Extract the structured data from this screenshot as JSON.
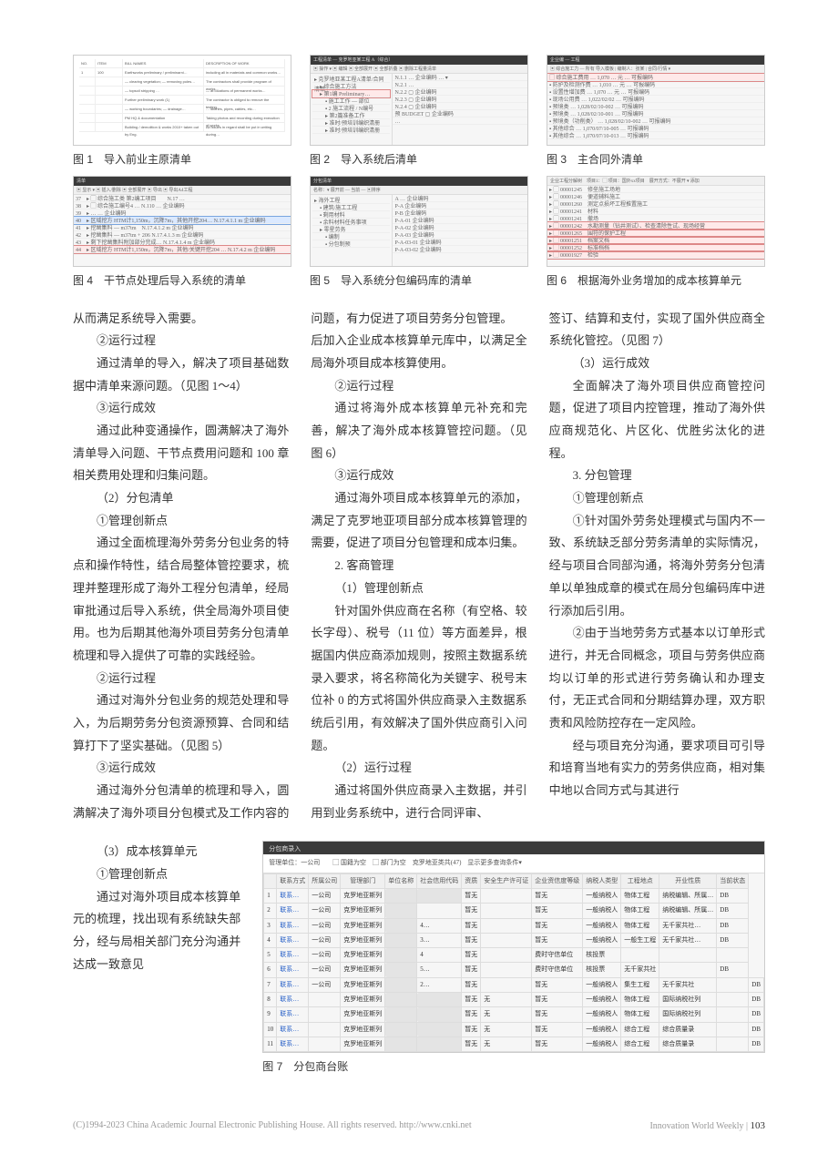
{
  "figs": {
    "f1": {
      "caption": "图 1　导入前业主原清单"
    },
    "f2": {
      "caption": "图 2　导入系统后清单"
    },
    "f3": {
      "caption": "图 3　主合同外清单"
    },
    "f4": {
      "caption": "图 4　干节点处理后导入系统的清单"
    },
    "f5": {
      "caption": "图 5　导入系统分包编码库的清单"
    },
    "f6": {
      "caption": "图 6　根据海外业务增加的成本核算单元"
    },
    "f7": {
      "caption": "图 7　分包商台账",
      "title": "分包商录入",
      "filter": "管理单位：一公司　　▢ 国籍为空　▢ 部门为空　克罗地亚类共(47)　显示更多查询条件▾"
    }
  },
  "f7_cols": [
    "",
    "联系方式",
    "所属公司",
    "管理部门",
    "单位名称",
    "社会信用代码",
    "资质",
    "安全生产许可证",
    "企业资信度等级",
    "纳税人类型",
    "工程地点",
    "开业性质",
    "当前状态"
  ],
  "f7_rows": [
    [
      "1",
      "联系…",
      "一公司",
      "克罗地亚斯列",
      "████",
      "████",
      "暂无",
      "",
      "暂无",
      "一般纳税人",
      "物体工程",
      "纳税编辑、所属…",
      "DB"
    ],
    [
      "2",
      "联系…",
      "一公司",
      "克罗地亚斯列",
      "████",
      "",
      "暂无",
      "",
      "暂无",
      "一般纳税人",
      "物体工程",
      "纳税编辑、所属…",
      "DB"
    ],
    [
      "3",
      "联系…",
      "一公司",
      "克罗地亚斯列",
      "████",
      "4…",
      "暂无",
      "",
      "暂无",
      "一般纳税人",
      "物体工程",
      "无千家共社…",
      "DB"
    ],
    [
      "4",
      "联系…",
      "一公司",
      "克罗地亚斯列",
      "████",
      "3…",
      "暂无",
      "",
      "暂无",
      "一般纳税人",
      "一般生工程",
      "无千家共社…",
      "DB"
    ],
    [
      "5",
      "联系…",
      "一公司",
      "克罗地亚斯列",
      "████",
      "4",
      "暂无",
      "",
      "费时守信单位",
      "核投票",
      "",
      "",
      ""
    ],
    [
      "6",
      "联系…",
      "一公司",
      "克罗地亚斯列",
      "████",
      "5…",
      "暂无",
      "",
      "费时守信单位",
      "核投票",
      "无千家共社",
      "",
      "DB"
    ],
    [
      "7",
      "联系…",
      "一公司",
      "克罗地亚斯列",
      "████",
      "2…",
      "暂无",
      "",
      "暂无",
      "一般纳税人",
      "集生工程",
      "无千家共社",
      "",
      "DB"
    ],
    [
      "8",
      "联系…",
      "",
      "克罗地亚斯列",
      "████",
      "████",
      "暂无",
      "无",
      "暂无",
      "一般纳税人",
      "物体工程",
      "国际纳税社列",
      "",
      "DB"
    ],
    [
      "9",
      "联系…",
      "",
      "克罗地亚斯列",
      "████",
      "████",
      "暂无",
      "无",
      "暂无",
      "一般纳税人",
      "物体工程",
      "国际纳税社列",
      "",
      "DB"
    ],
    [
      "10",
      "联系…",
      "",
      "克罗地亚斯列",
      "████",
      "████",
      "暂无",
      "无",
      "暂无",
      "一般纳税人",
      "综合工程",
      "综合质量录",
      "",
      "DB"
    ],
    [
      "11",
      "联系…",
      "",
      "克罗地亚斯列",
      "████",
      "████",
      "暂无",
      "无",
      "暂无",
      "一般纳税人",
      "综合工程",
      "综合质量录",
      "",
      "DB"
    ]
  ],
  "text": {
    "p01": "从而满足系统导入需要。",
    "p02": "②运行过程",
    "p03": "通过清单的导入，解决了项目基础数据中清单来源问题。（见图 1～4）",
    "p04": "③运行成效",
    "p05": "通过此种变通操作，圆满解决了海外清单导入问题、干节点费用问题和 100 章相关费用处理和归集问题。",
    "p06": "（2）分包清单",
    "p07": "①管理创新点",
    "p08": "通过全面梳理海外劳务分包业务的特点和操作特性，结合局整体管控要求，梳理并整理形成了海外工程分包清单，经局审批通过后导入系统，供全局海外项目使用。也为后期其他海外项目劳务分包清单梳理和导入提供了可靠的实践经验。",
    "p09": "②运行过程",
    "p10": "通过对海外分包业务的规范处理和导入，为后期劳务分包资源预算、合同和结算打下了坚实基础。（见图 5）",
    "p11": "③运行成效",
    "p12": "通过海外分包清单的梳理和导入，圆满解决了海外项目分包模式及工作内容的问题，有力促进了项目劳务分包管理。",
    "p14": "后加入企业成本核算单元库中，以满足全局海外项目成本核算使用。",
    "p15": "②运行过程",
    "p16": "通过将海外成本核算单元补充和完善，解决了海外成本核算管控问题。（见图 6）",
    "p17": "③运行成效",
    "p18": "通过海外项目成本核算单元的添加，满足了克罗地亚项目部分成本核算管理的需要，促进了项目分包管理和成本归集。",
    "p19": "2. 客商管理",
    "p20": "（1）管理创新点",
    "p21": "针对国外供应商在名称（有空格、较长字母）、税号（11 位）等方面差异，根据国内供应商添加规则，按照主数据系统录入要求，将名称简化为关键字、税号末位补 0 的方式将国外供应商录入主数据系统后引用，有效解决了国外供应商引入问题。",
    "p22": "（2）运行过程",
    "p23": "通过将国外供应商录入主数据，并引用到业务系统中，进行合同评审、",
    "p24": "签订、结算和支付，实现了国外供应商全系统化管控。（见图 7）",
    "p25": "（3）运行成效",
    "p26": "全面解决了海外项目供应商管控问题，促进了项目内控管理，推动了海外供应商规范化、片区化、优胜劣汰化的进程。",
    "p27": "3. 分包管理",
    "p28": "①管理创新点",
    "p29": "①针对国外劳务处理模式与国内不一致、系统缺乏部分劳务清单的实际情况，经与项目合同部沟通，将海外劳务分包清单以单独成章的模式在局分包编码库中进行添加后引用。",
    "p30": "②由于当地劳务方式基本以订单形式进行，并无合同概念，项目与劳务供应商均以订单的形式进行劳务确认和办理支付，无正式合同和分期结算办理，双方职责和风险防控存在一定风险。",
    "p31": "经与项目充分沟通，要求项目可引导和培育当地有实力的劳务供应商，相对集中地以合同方式与其进行",
    "b1": "（3）成本核算单元",
    "b2": "①管理创新点",
    "b3": "通过对海外项目成本核算单元的梳理，找出现有系统缺失部分，经与局相关部门充分沟通并达成一致意见"
  },
  "footer": {
    "left": "(C)1994-2023 China Academic Journal Electronic Publishing House. All rights reserved.    http://www.cnki.net",
    "right_top": "Innovation World Weekly",
    "right_num": "103"
  }
}
